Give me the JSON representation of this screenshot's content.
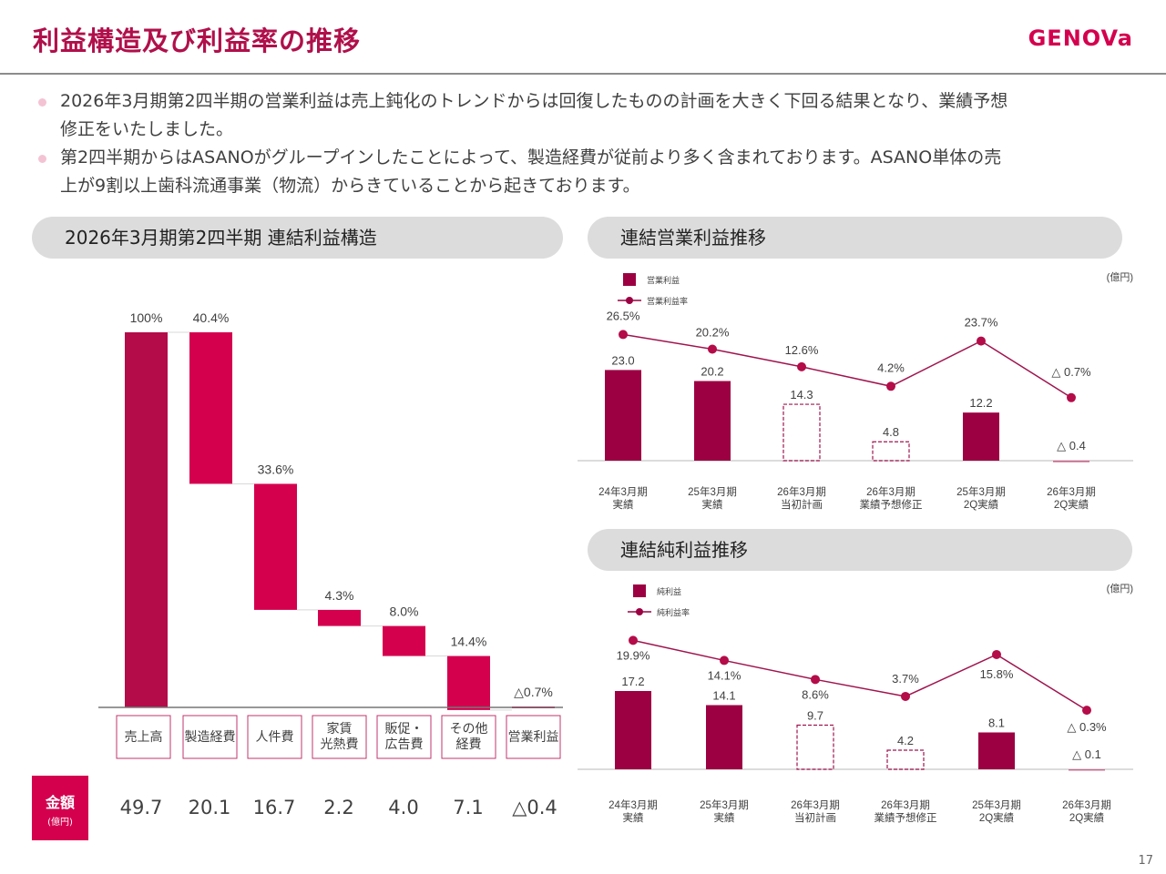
{
  "header": {
    "title": "利益構造及び利益率の推移",
    "logo": "GENOVa"
  },
  "bullets": [
    {
      "line1": "2026年3月期第2四半期の営業利益は売上鈍化のトレンドからは回復したものの計画を大きく下回る結果となり、業績予想",
      "line2": "修正をいたしました。"
    },
    {
      "line1": "第2四半期からはASANOがグループインしたことによって、製造経費が従前より多く含まれております。ASANO単体の売",
      "line2": "上が9割以上歯科流通事業（物流）からきていることから起きております。"
    }
  ],
  "panels": {
    "waterfall_title": "2026年3月期第2四半期 連結利益構造",
    "operating_title": "連結営業利益推移",
    "net_title": "連結純利益推移"
  },
  "amount_badge": {
    "label": "金額",
    "unit": "(億円)"
  },
  "page_number": "17",
  "colors": {
    "brand": "#d4004e",
    "dark": "#9c0042",
    "sales": "#b40c48",
    "title": "#b0104a"
  },
  "chart_data": [
    {
      "type": "bar",
      "subtype": "waterfall",
      "title": "2026年3月期第2四半期 連結利益構造",
      "categories": [
        "売上高",
        "製造経費",
        "人件費",
        "家賃\n光熱費",
        "販促・\n広告費",
        "その他\n経費",
        "営業利益"
      ],
      "percent_labels": [
        "100%",
        "40.4%",
        "33.6%",
        "4.3%",
        "8.0%",
        "14.4%",
        "△0.7%"
      ],
      "percent_values": [
        100,
        40.4,
        33.6,
        4.3,
        8.0,
        14.4,
        -0.7
      ],
      "amounts_label": "金額 (億円)",
      "amounts": [
        "49.7",
        "20.1",
        "16.7",
        "2.2",
        "4.0",
        "7.1",
        "△0.4"
      ],
      "amount_values": [
        49.7,
        20.1,
        16.7,
        2.2,
        4.0,
        7.1,
        -0.4
      ]
    },
    {
      "type": "bar",
      "subtype": "bar+line",
      "title": "連結営業利益推移",
      "unit": "(億円)",
      "categories": [
        "24年3月期\n実績",
        "25年3月期\n実績",
        "26年3月期\n当初計画",
        "26年3月期\n業績予想修正",
        "25年3月期\n2Q実績",
        "26年3月期\n2Q実績"
      ],
      "legend": [
        "営業利益",
        "営業利益率"
      ],
      "series": [
        {
          "name": "営業利益",
          "values": [
            23.0,
            20.2,
            14.3,
            4.8,
            12.2,
            -0.4
          ],
          "labels": [
            "23.0",
            "20.2",
            "14.3",
            "4.8",
            "12.2",
            "△ 0.4"
          ],
          "style": [
            "solid",
            "solid",
            "dashed",
            "dashed",
            "solid",
            "solid"
          ]
        },
        {
          "name": "営業利益率",
          "values": [
            26.5,
            20.2,
            12.6,
            4.2,
            23.7,
            -0.7
          ],
          "labels": [
            "26.5%",
            "20.2%",
            "12.6%",
            "4.2%",
            "23.7%",
            "△ 0.7%"
          ]
        }
      ]
    },
    {
      "type": "bar",
      "subtype": "bar+line",
      "title": "連結純利益推移",
      "unit": "(億円)",
      "categories": [
        "24年3月期\n実績",
        "25年3月期\n実績",
        "26年3月期\n当初計画",
        "26年3月期\n業績予想修正",
        "25年3月期\n2Q実績",
        "26年3月期\n2Q実績"
      ],
      "legend": [
        "純利益",
        "純利益率"
      ],
      "series": [
        {
          "name": "純利益",
          "values": [
            17.2,
            14.1,
            9.7,
            4.2,
            8.1,
            -0.1
          ],
          "labels": [
            "17.2",
            "14.1",
            "9.7",
            "4.2",
            "8.1",
            "△ 0.1"
          ],
          "style": [
            "solid",
            "solid",
            "dashed",
            "dashed",
            "solid",
            "solid"
          ]
        },
        {
          "name": "純利益率",
          "values": [
            19.9,
            14.1,
            8.6,
            3.7,
            15.8,
            -0.3
          ],
          "labels": [
            "19.9%",
            "14.1%",
            "8.6%",
            "3.7%",
            "15.8%",
            "△ 0.3%"
          ]
        }
      ]
    }
  ]
}
